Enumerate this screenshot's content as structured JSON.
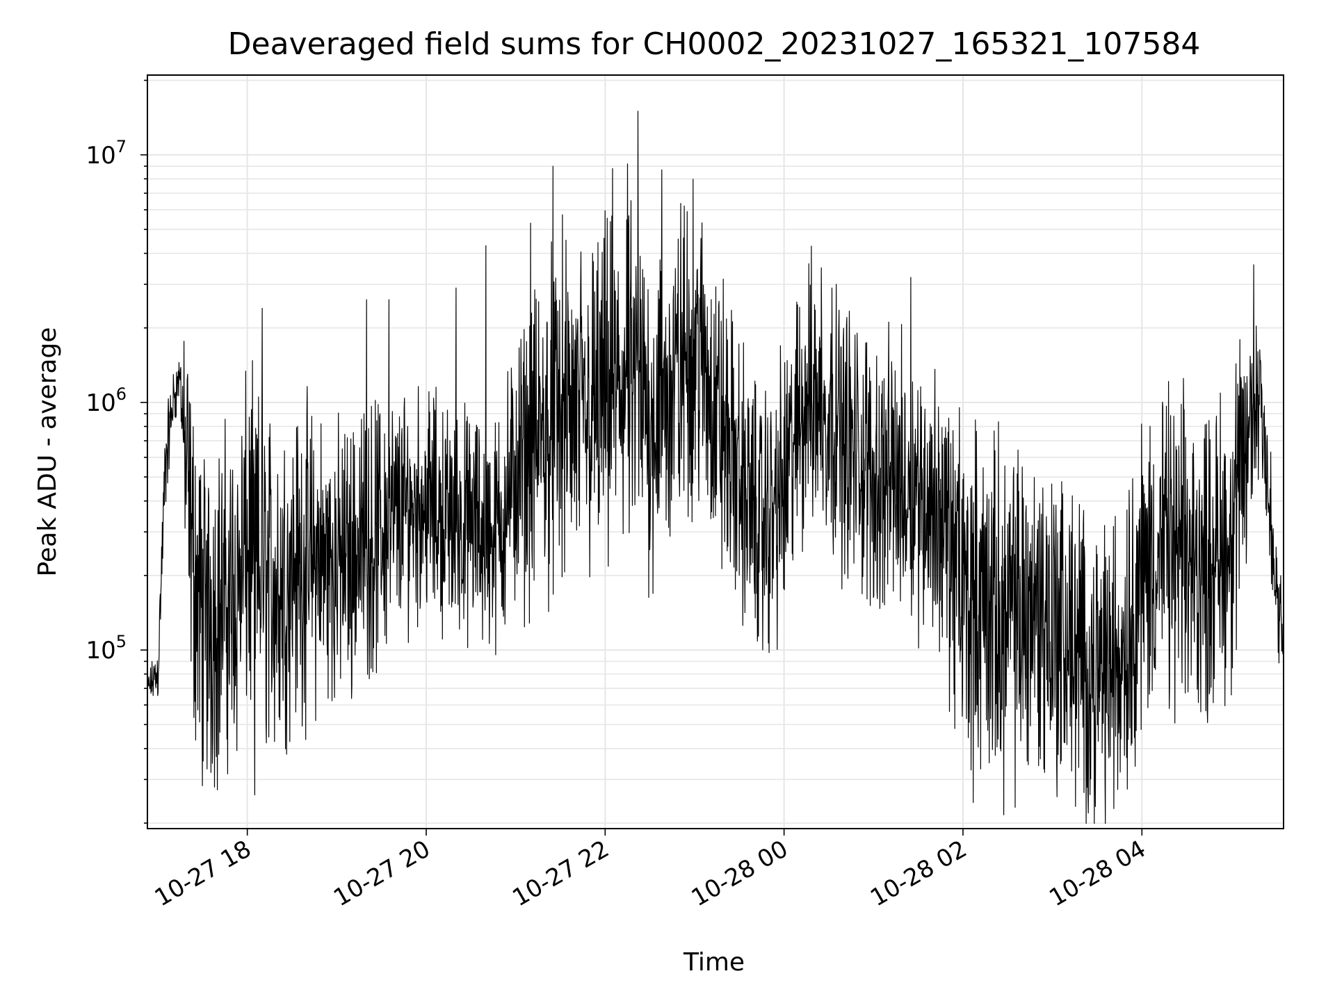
{
  "chart_data": {
    "type": "line",
    "title": "Deaveraged field sums for CH0002_20231027_165321_107584",
    "xlabel": "Time",
    "ylabel": "Peak ADU - average",
    "yscale": "log",
    "ylim": [
      19000,
      21000000
    ],
    "xlim": [
      "2023-10-27 16:53",
      "2023-10-28 05:35"
    ],
    "grid": true,
    "line_color": "#000000",
    "grid_color": "#e6e6e6",
    "x_ticks": [
      {
        "value": "2023-10-27 18:00",
        "label": "10-27 18"
      },
      {
        "value": "2023-10-27 20:00",
        "label": "10-27 20"
      },
      {
        "value": "2023-10-27 22:00",
        "label": "10-27 22"
      },
      {
        "value": "2023-10-28 00:00",
        "label": "10-28 00"
      },
      {
        "value": "2023-10-28 02:00",
        "label": "10-28 02"
      },
      {
        "value": "2023-10-28 04:00",
        "label": "10-28 04"
      }
    ],
    "y_ticks": [
      {
        "value": 100000,
        "base": "10",
        "exp": "5"
      },
      {
        "value": 1000000,
        "base": "10",
        "exp": "6"
      },
      {
        "value": 10000000,
        "base": "10",
        "exp": "7"
      }
    ],
    "series": [
      {
        "x": [
          "2023-10-27 16:53",
          "2023-10-27 17:00",
          "2023-10-27 17:05",
          "2023-10-27 17:10",
          "2023-10-27 17:15",
          "2023-10-27 17:20",
          "2023-10-27 17:25",
          "2023-10-27 17:30",
          "2023-10-27 17:40",
          "2023-10-27 17:50",
          "2023-10-27 18:00",
          "2023-10-27 18:10",
          "2023-10-27 18:20",
          "2023-10-27 18:30",
          "2023-10-27 18:45",
          "2023-10-27 19:00",
          "2023-10-27 19:15",
          "2023-10-27 19:30",
          "2023-10-27 19:45",
          "2023-10-27 20:00",
          "2023-10-27 20:15",
          "2023-10-27 20:30",
          "2023-10-27 20:45",
          "2023-10-27 21:00",
          "2023-10-27 21:15",
          "2023-10-27 21:30",
          "2023-10-27 21:45",
          "2023-10-27 22:00",
          "2023-10-27 22:15",
          "2023-10-27 22:30",
          "2023-10-27 22:45",
          "2023-10-27 23:00",
          "2023-10-27 23:15",
          "2023-10-27 23:30",
          "2023-10-27 23:45",
          "2023-10-28 00:00",
          "2023-10-28 00:15",
          "2023-10-28 00:30",
          "2023-10-28 00:45",
          "2023-10-28 01:00",
          "2023-10-28 01:15",
          "2023-10-28 01:30",
          "2023-10-28 01:45",
          "2023-10-28 02:00",
          "2023-10-28 02:15",
          "2023-10-28 02:30",
          "2023-10-28 02:45",
          "2023-10-28 03:00",
          "2023-10-28 03:15",
          "2023-10-28 03:30",
          "2023-10-28 03:45",
          "2023-10-28 04:00",
          "2023-10-28 04:15",
          "2023-10-28 04:30",
          "2023-10-28 04:45",
          "2023-10-28 05:00",
          "2023-10-28 05:10",
          "2023-10-28 05:20",
          "2023-10-28 05:27",
          "2023-10-28 05:35"
        ],
        "y": [
          70000,
          80000,
          550000,
          1000000,
          1300000,
          400000,
          200000,
          130000,
          150000,
          160000,
          250000,
          200000,
          180000,
          220000,
          230000,
          220000,
          260000,
          300000,
          370000,
          400000,
          330000,
          320000,
          280000,
          500000,
          700000,
          900000,
          850000,
          1000000,
          1200000,
          900000,
          1100000,
          1800000,
          900000,
          500000,
          300000,
          450000,
          1100000,
          900000,
          650000,
          500000,
          500000,
          450000,
          350000,
          170000,
          150000,
          130000,
          150000,
          130000,
          100000,
          80000,
          90000,
          200000,
          250000,
          230000,
          220000,
          300000,
          600000,
          1300000,
          250000,
          100000
        ],
        "y_spread_factor": [
          1.1,
          1.3,
          1.5,
          1.3,
          1.2,
          3,
          4,
          4,
          4,
          4,
          4,
          4,
          4,
          3.5,
          3.5,
          3,
          3,
          3,
          2.5,
          2.5,
          2.5,
          2.5,
          2.5,
          3,
          3.5,
          4,
          4,
          4,
          4,
          4,
          4,
          3.5,
          3.5,
          3,
          3,
          3,
          3,
          3,
          3,
          3,
          3,
          3,
          3,
          4,
          4,
          4,
          4,
          4,
          3.5,
          3.5,
          3.5,
          3.5,
          3.5,
          3.5,
          3.5,
          3.5,
          3,
          2,
          2,
          1.3
        ],
        "spikes": [
          {
            "x": "2023-10-27 17:20",
            "y": 1300000
          },
          {
            "x": "2023-10-27 18:10",
            "y": 2400000
          },
          {
            "x": "2023-10-27 18:05",
            "y": 26000
          },
          {
            "x": "2023-10-27 19:20",
            "y": 2600000
          },
          {
            "x": "2023-10-27 19:35",
            "y": 2600000
          },
          {
            "x": "2023-10-27 20:20",
            "y": 2900000
          },
          {
            "x": "2023-10-27 20:40",
            "y": 4300000
          },
          {
            "x": "2023-10-27 21:10",
            "y": 5300000
          },
          {
            "x": "2023-10-27 21:25",
            "y": 9000000
          },
          {
            "x": "2023-10-27 22:05",
            "y": 8800000
          },
          {
            "x": "2023-10-27 22:15",
            "y": 9200000
          },
          {
            "x": "2023-10-27 22:22",
            "y": 15000000
          },
          {
            "x": "2023-10-27 22:38",
            "y": 8700000
          },
          {
            "x": "2023-10-27 22:55",
            "y": 5900000
          },
          {
            "x": "2023-10-28 00:25",
            "y": 3500000
          },
          {
            "x": "2023-10-28 00:35",
            "y": 3000000
          },
          {
            "x": "2023-10-28 01:25",
            "y": 3200000
          },
          {
            "x": "2023-10-28 02:25",
            "y": 40000
          },
          {
            "x": "2023-10-28 03:25",
            "y": 45000
          },
          {
            "x": "2023-10-28 05:15",
            "y": 3600000
          }
        ]
      }
    ]
  }
}
